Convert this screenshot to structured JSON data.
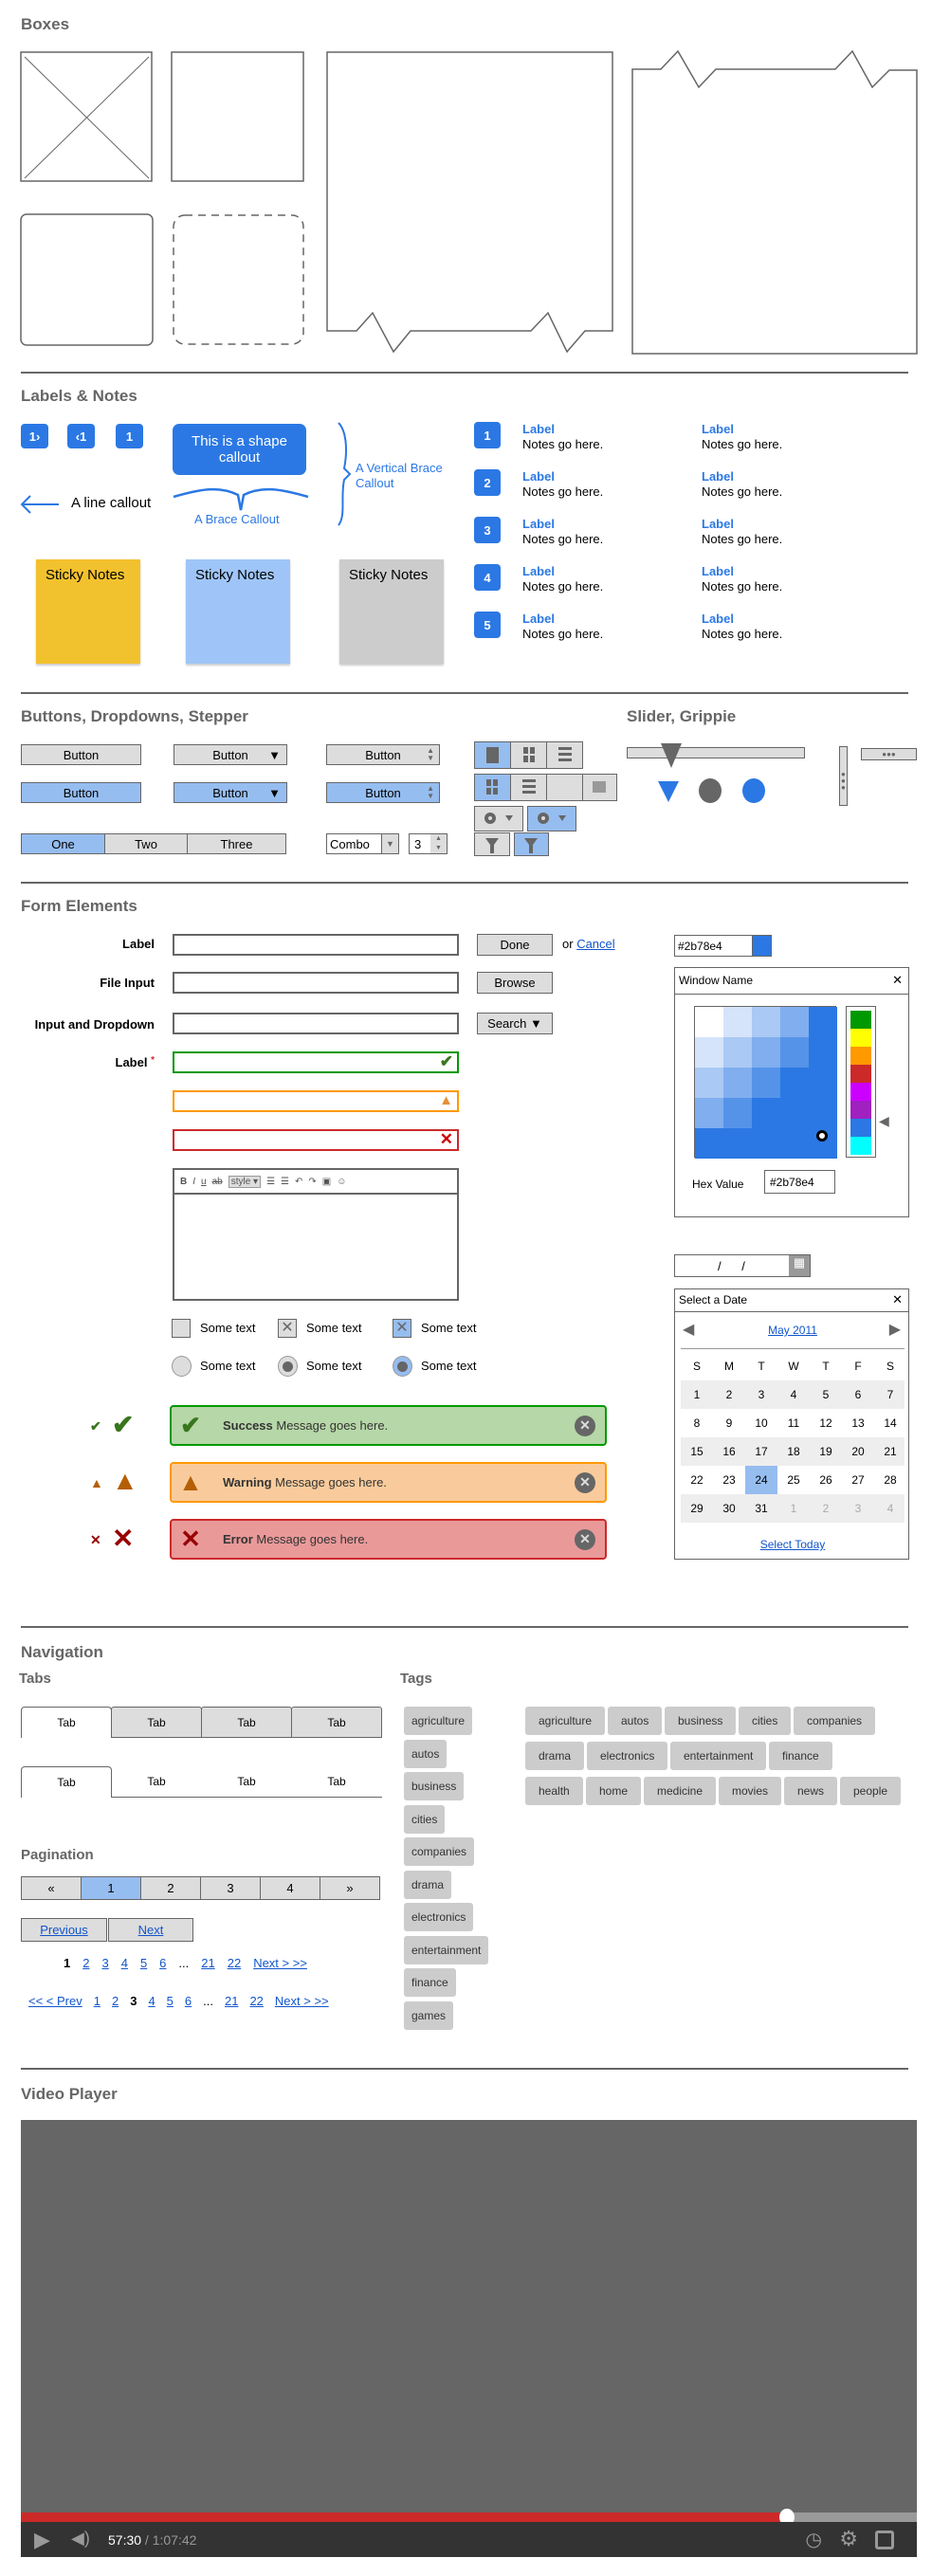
{
  "sections": {
    "boxes": "Boxes",
    "labels": "Labels & Notes",
    "buttons": "Buttons, Dropdowns, Stepper",
    "slider": "Slider, Grippie",
    "form": "Form Elements",
    "navigation": "Navigation",
    "tabs": "Tabs",
    "tags": "Tags",
    "pagination": "Pagination",
    "video": "Video Player"
  },
  "labels": {
    "badges": [
      "1›",
      "‹1",
      "1"
    ],
    "shape_callout": "This is a shape callout",
    "line_callout": "A line callout",
    "brace_callout": "A Brace Callout",
    "vertical_brace_callout": "A Vertical Brace Callout",
    "sticky": [
      {
        "text": "Sticky Notes",
        "color": "#f2c12e"
      },
      {
        "text": "Sticky Notes",
        "color": "#9fc5f8"
      },
      {
        "text": "Sticky Notes",
        "color": "#cccccc"
      }
    ],
    "numbered": [
      {
        "n": "1",
        "label": "Label",
        "note": "Notes go here.",
        "label2": "Label",
        "note2": "Notes go here."
      },
      {
        "n": "2",
        "label": "Label",
        "note": "Notes go here.",
        "label2": "Label",
        "note2": "Notes go here."
      },
      {
        "n": "3",
        "label": "Label",
        "note": "Notes go here.",
        "label2": "Label",
        "note2": "Notes go here."
      },
      {
        "n": "4",
        "label": "Label",
        "note": "Notes go here.",
        "label2": "Label",
        "note2": "Notes go here."
      },
      {
        "n": "5",
        "label": "Label",
        "note": "Notes go here.",
        "label2": "Label",
        "note2": "Notes go here."
      }
    ]
  },
  "buttons": {
    "button": "Button",
    "segments": [
      "One",
      "Two",
      "Three"
    ],
    "selected_segment": "One",
    "combo": "Combo",
    "stepper": "3"
  },
  "slider": {
    "value_percent": 25
  },
  "form": {
    "label": "Label",
    "file_input": "File Input",
    "input_dropdown": "Input and Dropdown",
    "required_label": "Label",
    "required_mark": "*",
    "done": "Done",
    "or": "or",
    "cancel": "Cancel",
    "browse": "Browse",
    "search": "Search ▼",
    "toolbar": {
      "style": "style"
    },
    "checkboxes": [
      "Some text",
      "Some text",
      "Some text"
    ],
    "radios": [
      "Some text",
      "Some text",
      "Some text"
    ],
    "messages": [
      {
        "type": "success",
        "title": "Success",
        "text": " Message goes here."
      },
      {
        "type": "warning",
        "title": "Warning",
        "text": " Message goes here."
      },
      {
        "type": "error",
        "title": "Error",
        "text": " Message goes here."
      }
    ],
    "color": {
      "value": "#2b78e4",
      "window_name": "Window Name",
      "hex_label": "Hex Value",
      "hex_value": "#2b78e4",
      "hues": [
        "#009900",
        "#ffff00",
        "#ff9900",
        "#cc2929",
        "#cc00ff",
        "#a020c0",
        "#2b78e4",
        "#00ffff"
      ]
    },
    "date_input": "/      /",
    "calendar": {
      "title": "Select a Date",
      "month": "May 2011",
      "days": [
        "S",
        "M",
        "T",
        "W",
        "T",
        "F",
        "S"
      ],
      "weeks": [
        [
          "1",
          "2",
          "3",
          "4",
          "5",
          "6",
          "7"
        ],
        [
          "8",
          "9",
          "10",
          "11",
          "12",
          "13",
          "14"
        ],
        [
          "15",
          "16",
          "17",
          "18",
          "19",
          "20",
          "21"
        ],
        [
          "22",
          "23",
          "24",
          "25",
          "26",
          "27",
          "28"
        ],
        [
          "29",
          "30",
          "31",
          "1",
          "2",
          "3",
          "4"
        ]
      ],
      "selected": "24",
      "select_today": "Select Today"
    }
  },
  "navigation": {
    "tabs_row1": [
      "Tab",
      "Tab",
      "Tab",
      "Tab"
    ],
    "tabs_row2": [
      "Tab",
      "Tab",
      "Tab",
      "Tab"
    ],
    "tags_vertical": [
      "agriculture",
      "autos",
      "business",
      "cities",
      "companies",
      "drama",
      "electronics",
      "entertainment",
      "finance",
      "games"
    ],
    "tags_rows": [
      [
        "agriculture",
        "autos",
        "business",
        "cities",
        "companies"
      ],
      [
        "drama",
        "electronics",
        "entertainment",
        "finance"
      ],
      [
        "health",
        "home",
        "medicine",
        "movies",
        "news",
        "people"
      ]
    ],
    "pager": [
      "«",
      "1",
      "2",
      "3",
      "4",
      "»"
    ],
    "pager_selected": "1",
    "prev": "Previous",
    "next": "Next",
    "links1": [
      "1",
      "2",
      "3",
      "4",
      "5",
      "6",
      "...",
      "21",
      "22",
      "Next > >>"
    ],
    "links1_current": "1",
    "links2": [
      "<< < Prev",
      "1",
      "2",
      "3",
      "4",
      "5",
      "6",
      "...",
      "21",
      "22",
      "Next > >>"
    ],
    "links2_current": "3"
  },
  "video": {
    "current": "57:30",
    "total": " / 1:07:42",
    "progress_percent": 85.5
  }
}
